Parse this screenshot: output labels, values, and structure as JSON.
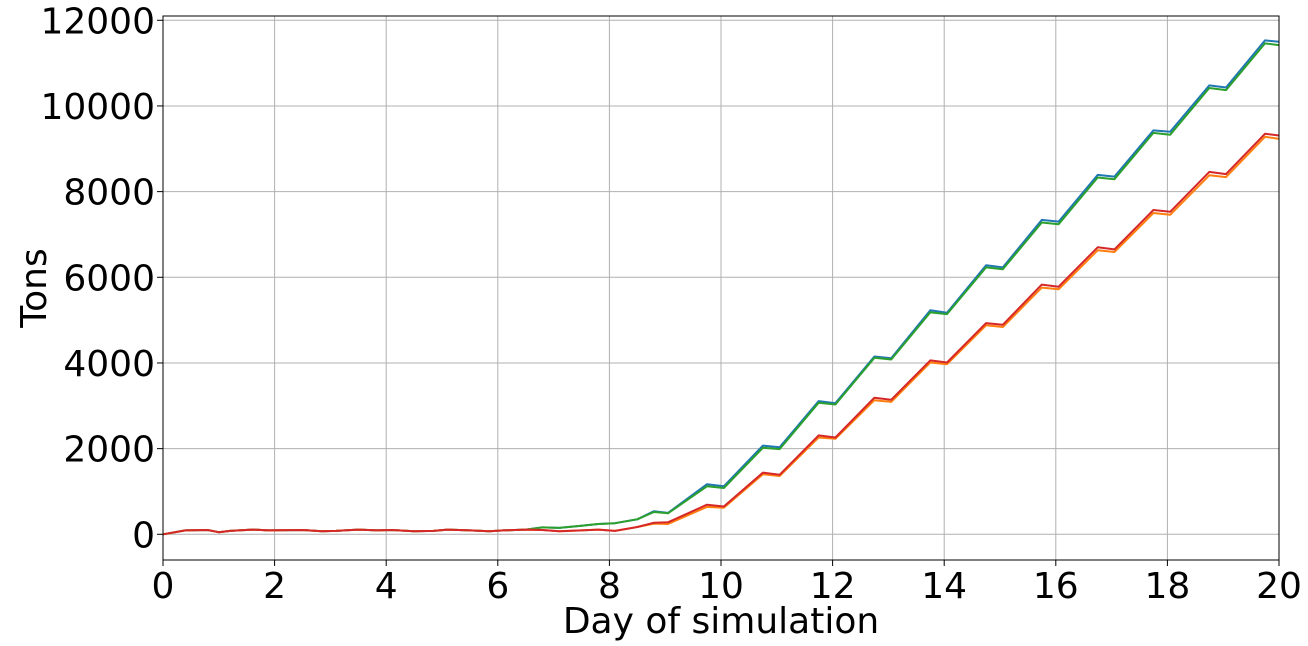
{
  "chart_data": {
    "type": "line",
    "title": "",
    "xlabel": "Day of simulation",
    "ylabel": "Tons",
    "xlim": [
      0,
      20
    ],
    "ylim": [
      -600,
      12100
    ],
    "xticks": [
      0,
      2,
      4,
      6,
      8,
      10,
      12,
      14,
      16,
      18,
      20
    ],
    "yticks": [
      0,
      2000,
      4000,
      6000,
      8000,
      10000,
      12000
    ],
    "grid": true,
    "legend": "none",
    "series": [
      {
        "color": "#1f77b4",
        "x": [
          0,
          0.4,
          0.8,
          1,
          1.2,
          1.6,
          1.9,
          2.5,
          2.85,
          3.1,
          3.5,
          3.85,
          4.1,
          4.5,
          4.85,
          5.1,
          5.5,
          5.85,
          6.1,
          6.5,
          6.8,
          7.1,
          7.5,
          7.8,
          8.1,
          8.5,
          8.8,
          9.05,
          9.75,
          10.05,
          10.75,
          11.05,
          11.75,
          12.05,
          12.75,
          13.05,
          13.75,
          14.05,
          14.75,
          15.05,
          15.75,
          16.05,
          16.75,
          17.05,
          17.75,
          18.05,
          18.75,
          19.05,
          19.75,
          20
        ],
        "y": [
          0,
          90,
          100,
          50,
          80,
          110,
          90,
          100,
          70,
          80,
          110,
          90,
          100,
          70,
          80,
          110,
          90,
          70,
          90,
          110,
          160,
          150,
          200,
          240,
          260,
          350,
          540,
          500,
          1170,
          1120,
          2070,
          2030,
          3110,
          3060,
          4150,
          4110,
          5230,
          5170,
          6280,
          6230,
          7340,
          7300,
          8390,
          8350,
          9430,
          9400,
          10480,
          10430,
          11530,
          11500
        ]
      },
      {
        "color": "#2ca02c",
        "x": [
          0,
          0.4,
          0.8,
          1,
          1.2,
          1.6,
          1.9,
          2.5,
          2.85,
          3.1,
          3.5,
          3.85,
          4.1,
          4.5,
          4.85,
          5.1,
          5.5,
          5.85,
          6.1,
          6.5,
          6.8,
          7.1,
          7.5,
          7.8,
          8.1,
          8.5,
          8.8,
          9.05,
          9.75,
          10.05,
          10.75,
          11.05,
          11.75,
          12.05,
          12.75,
          13.05,
          13.75,
          14.05,
          14.75,
          15.05,
          15.75,
          16.05,
          16.75,
          17.05,
          17.75,
          18.05,
          18.75,
          19.05,
          19.75,
          20
        ],
        "y": [
          0,
          90,
          100,
          50,
          80,
          110,
          90,
          100,
          70,
          80,
          110,
          90,
          100,
          70,
          80,
          110,
          90,
          70,
          90,
          110,
          160,
          150,
          200,
          240,
          260,
          350,
          520,
          490,
          1120,
          1080,
          2020,
          1990,
          3070,
          3030,
          4120,
          4080,
          5180,
          5140,
          6230,
          6190,
          7280,
          7240,
          8330,
          8290,
          9370,
          9330,
          10420,
          10370,
          11460,
          11420
        ]
      },
      {
        "color": "#ff7f0e",
        "x": [
          0,
          0.4,
          0.8,
          1,
          1.2,
          1.6,
          1.9,
          2.5,
          2.85,
          3.1,
          3.5,
          3.85,
          4.1,
          4.5,
          4.85,
          5.1,
          5.5,
          5.85,
          6.1,
          6.5,
          6.8,
          7.1,
          7.5,
          7.8,
          8.1,
          8.5,
          8.8,
          9.05,
          9.75,
          10.05,
          10.75,
          11.05,
          11.75,
          12.05,
          12.75,
          13.05,
          13.75,
          14.05,
          14.75,
          15.05,
          15.75,
          16.05,
          16.75,
          17.05,
          17.75,
          18.05,
          18.75,
          19.05,
          19.75,
          20
        ],
        "y": [
          0,
          90,
          100,
          50,
          80,
          110,
          90,
          100,
          70,
          80,
          110,
          90,
          100,
          70,
          80,
          110,
          90,
          70,
          90,
          110,
          100,
          70,
          90,
          110,
          80,
          170,
          250,
          240,
          640,
          620,
          1400,
          1360,
          2260,
          2230,
          3130,
          3090,
          4010,
          3970,
          4880,
          4840,
          5760,
          5720,
          6630,
          6590,
          7500,
          7460,
          8380,
          8340,
          9280,
          9230
        ]
      },
      {
        "color": "#d62728",
        "x": [
          0,
          0.4,
          0.8,
          1,
          1.2,
          1.6,
          1.9,
          2.5,
          2.85,
          3.1,
          3.5,
          3.85,
          4.1,
          4.5,
          4.85,
          5.1,
          5.5,
          5.85,
          6.1,
          6.5,
          6.8,
          7.1,
          7.5,
          7.8,
          8.1,
          8.5,
          8.8,
          9.05,
          9.75,
          10.05,
          10.75,
          11.05,
          11.75,
          12.05,
          12.75,
          13.05,
          13.75,
          14.05,
          14.75,
          15.05,
          15.75,
          16.05,
          16.75,
          17.05,
          17.75,
          18.05,
          18.75,
          19.05,
          19.75,
          20
        ],
        "y": [
          0,
          90,
          100,
          50,
          80,
          110,
          90,
          100,
          70,
          80,
          110,
          90,
          100,
          70,
          80,
          110,
          90,
          70,
          90,
          110,
          100,
          70,
          90,
          110,
          80,
          170,
          270,
          280,
          690,
          650,
          1440,
          1390,
          2310,
          2260,
          3190,
          3140,
          4060,
          4010,
          4930,
          4890,
          5830,
          5780,
          6700,
          6650,
          7570,
          7530,
          8460,
          8410,
          9350,
          9310
        ]
      }
    ]
  }
}
